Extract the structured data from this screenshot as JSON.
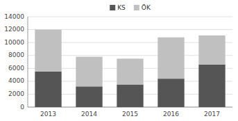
{
  "chart_data": {
    "type": "bar",
    "stacked": true,
    "categories": [
      "2013",
      "2014",
      "2015",
      "2016",
      "2017"
    ],
    "series": [
      {
        "name": "KS",
        "color": "#555555",
        "values": [
          5500,
          3200,
          3500,
          4400,
          6600
        ]
      },
      {
        "name": "ÖK",
        "color": "#c0c0c0",
        "values": [
          6500,
          4600,
          4000,
          6400,
          4500
        ]
      }
    ],
    "ylim": [
      0,
      14000
    ],
    "yticks": [
      0,
      2000,
      4000,
      6000,
      8000,
      10000,
      12000,
      14000
    ],
    "grid": true,
    "legend": "top"
  }
}
